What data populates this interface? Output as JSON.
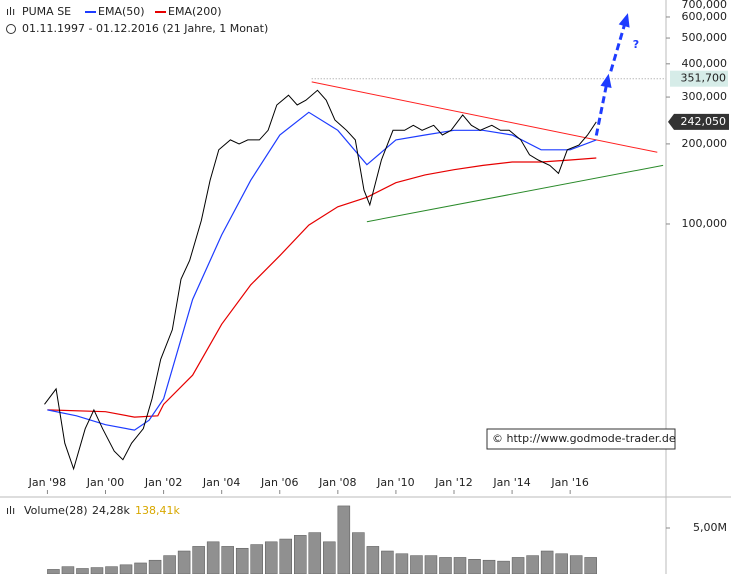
{
  "chart_data": {
    "type": "line",
    "title": "PUMA SE",
    "subtitle": "01.11.1997 - 01.12.2016  (21 Jahre, 1 Monat)",
    "log_scale": true,
    "ylim": [
      10,
      695
    ],
    "xlim": [
      1997.4,
      2019.3
    ],
    "yticks": [
      {
        "value": 100,
        "label": "100,000"
      },
      {
        "value": 200,
        "label": "200,000"
      },
      {
        "value": 300,
        "label": "300,000"
      },
      {
        "value": 400,
        "label": "400,000"
      },
      {
        "value": 500,
        "label": "500,000"
      },
      {
        "value": 600,
        "label": "600,000"
      },
      {
        "value": 700,
        "label": "700,000"
      }
    ],
    "xticks": [
      {
        "value": 1998,
        "label": "Jan '98"
      },
      {
        "value": 2000,
        "label": "Jan '00"
      },
      {
        "value": 2002,
        "label": "Jan '02"
      },
      {
        "value": 2004,
        "label": "Jan '04"
      },
      {
        "value": 2006,
        "label": "Jan '06"
      },
      {
        "value": 2008,
        "label": "Jan '08"
      },
      {
        "value": 2010,
        "label": "Jan '10"
      },
      {
        "value": 2012,
        "label": "Jan '12"
      },
      {
        "value": 2014,
        "label": "Jan '14"
      },
      {
        "value": 2016,
        "label": "Jan '16"
      }
    ],
    "series": [
      {
        "name": "PUMA SE",
        "color": "#000000",
        "x": [
          1997.9,
          1998.3,
          1998.6,
          1998.9,
          1999.3,
          1999.6,
          1999.9,
          2000.3,
          2000.6,
          2000.9,
          2001.3,
          2001.6,
          2001.9,
          2002.3,
          2002.6,
          2002.9,
          2003.3,
          2003.6,
          2003.9,
          2004.3,
          2004.6,
          2004.9,
          2005.3,
          2005.6,
          2005.9,
          2006.3,
          2006.6,
          2006.9,
          2007.3,
          2007.6,
          2007.9,
          2008.3,
          2008.6,
          2008.9,
          2009.1,
          2009.5,
          2009.9,
          2010.3,
          2010.6,
          2010.9,
          2011.3,
          2011.6,
          2011.9,
          2012.3,
          2012.6,
          2012.9,
          2013.3,
          2013.6,
          2013.9,
          2014.3,
          2014.6,
          2014.9,
          2015.3,
          2015.6,
          2015.9,
          2016.3,
          2016.6,
          2016.9
        ],
        "values": [
          21,
          24,
          15,
          12,
          17,
          20,
          17,
          14,
          13,
          15,
          17,
          22,
          31,
          40,
          62,
          73,
          103,
          146,
          190,
          207,
          200,
          207,
          207,
          225,
          280,
          305,
          280,
          292,
          318,
          292,
          246,
          225,
          207,
          134,
          118,
          174,
          225,
          225,
          235,
          225,
          235,
          216,
          225,
          257,
          235,
          225,
          235,
          225,
          225,
          207,
          182,
          174,
          166,
          155,
          190,
          198,
          216,
          242
        ]
      },
      {
        "name": "EMA(50)",
        "color": "#1e3cff",
        "x": [
          1998,
          1999,
          2000,
          2001,
          2001.5,
          2002,
          2003,
          2004,
          2005,
          2006,
          2007,
          2008,
          2009,
          2010,
          2011,
          2012,
          2013,
          2014,
          2015,
          2016,
          2016.9
        ],
        "values": [
          20,
          19,
          17.6,
          16.8,
          18.3,
          22,
          52,
          91,
          146,
          216,
          263,
          225,
          167,
          207,
          216,
          225,
          225,
          216,
          190,
          190,
          207
        ]
      },
      {
        "name": "EMA(200)",
        "color": "#e60000",
        "x": [
          1998,
          2000,
          2001,
          2001.8,
          2002,
          2003,
          2004,
          2005,
          2006,
          2007,
          2008,
          2009,
          2010,
          2011,
          2012,
          2013,
          2014,
          2015,
          2016,
          2016.9
        ],
        "values": [
          20,
          19.7,
          18.8,
          19,
          21,
          27,
          42,
          59,
          76,
          99,
          116,
          126,
          143,
          153,
          160,
          166,
          171,
          171,
          174,
          177
        ]
      }
    ],
    "trendlines": [
      {
        "color": "#ff2020",
        "x": [
          2007.1,
          2019.0
        ],
        "values": [
          342,
          186
        ]
      },
      {
        "color": "#2a8a2a",
        "x": [
          2009.0,
          2019.2
        ],
        "values": [
          102,
          166
        ]
      }
    ],
    "arrows": [
      {
        "color": "#1e3cff",
        "x": [
          2016.9,
          2017.3
        ],
        "values": [
          215,
          355
        ]
      },
      {
        "color": "#1e3cff",
        "x": [
          2017.4,
          2017.95
        ],
        "values": [
          375,
          600
        ]
      }
    ],
    "arrow_note": "?",
    "reference_line": {
      "value": 351.7,
      "label": "351,700"
    },
    "last_price": {
      "value": 242.05,
      "label": "242,050"
    },
    "copyright": "© http://www.godmode-trader.de",
    "volume": {
      "name": "Volume(28)",
      "info": [
        "24,28k",
        "138,41k"
      ],
      "color": "#909090",
      "ylim": [
        0,
        7500000
      ],
      "yticks": [
        {
          "value": 5000000,
          "label": "5,00M"
        }
      ],
      "x": [
        1998,
        1998.5,
        1999,
        1999.5,
        2000,
        2000.5,
        2001,
        2001.5,
        2002,
        2002.5,
        2003,
        2003.5,
        2004,
        2004.5,
        2005,
        2005.5,
        2006,
        2006.5,
        2007,
        2007.5,
        2008,
        2008.5,
        2009,
        2009.5,
        2010,
        2010.5,
        2011,
        2011.5,
        2012,
        2012.5,
        2013,
        2013.5,
        2014,
        2014.5,
        2015,
        2015.5,
        2016,
        2016.5
      ],
      "values": [
        500000,
        800000,
        600000,
        700000,
        800000,
        1000000,
        1200000,
        1500000,
        2000000,
        2500000,
        3000000,
        3500000,
        3000000,
        2800000,
        3200000,
        3500000,
        3800000,
        4200000,
        4500000,
        3500000,
        7400000,
        4500000,
        3000000,
        2500000,
        2200000,
        2000000,
        2000000,
        1800000,
        1800000,
        1600000,
        1500000,
        1400000,
        1800000,
        2000000,
        2500000,
        2200000,
        2000000,
        1800000
      ]
    }
  }
}
